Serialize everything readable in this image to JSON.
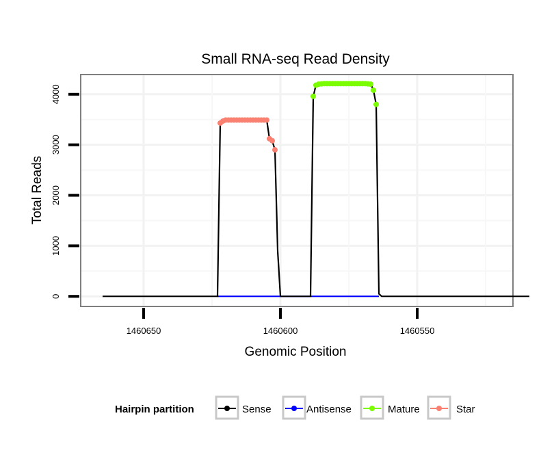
{
  "chart_data": {
    "type": "line",
    "title": "Small RNA-seq Read Density",
    "xlabel": "Genomic Position",
    "ylabel": "Total Reads",
    "xlim": [
      1460673,
      1460515
    ],
    "ylim": [
      -200,
      4390
    ],
    "x_ticks": [
      1460650,
      1460600,
      1460550
    ],
    "x_tick_labels": [
      "1460650",
      "1460600",
      "1460550"
    ],
    "y_ticks": [
      0,
      1000,
      2000,
      3000,
      4000
    ],
    "y_tick_labels": [
      "0",
      "1000",
      "2000",
      "3000",
      "4000"
    ],
    "grid": true,
    "legend": {
      "title": "Hairpin partition",
      "position": "bottom",
      "entries": [
        {
          "name": "Sense",
          "color": "#000000"
        },
        {
          "name": "Antisense",
          "color": "#0000ff"
        },
        {
          "name": "Mature",
          "color": "#7cfc00"
        },
        {
          "name": "Star",
          "color": "#fa8072"
        }
      ]
    },
    "series": [
      {
        "name": "Sense",
        "color": "#000000",
        "x": [
          1460665,
          1460623,
          1460622,
          1460621,
          1460605,
          1460604,
          1460603,
          1460602,
          1460601,
          1460600,
          1460599,
          1460590,
          1460589,
          1460588,
          1460587,
          1460586,
          1460585,
          1460567,
          1460566,
          1460565,
          1460564,
          1460563,
          1460509
        ],
        "y": [
          0,
          0,
          3430,
          3490,
          3490,
          3120,
          3080,
          2900,
          900,
          0,
          0,
          0,
          0,
          3950,
          4190,
          4210,
          4210,
          4210,
          4080,
          3800,
          50,
          0,
          0
        ]
      },
      {
        "name": "Antisense",
        "color": "#0000ff",
        "x": [
          1460623,
          1460564
        ],
        "y": [
          0,
          0
        ]
      },
      {
        "name": "Mature",
        "color": "#7cfc00",
        "x": [
          1460588,
          1460587,
          1460586,
          1460585,
          1460584,
          1460583,
          1460582,
          1460581,
          1460580,
          1460579,
          1460578,
          1460577,
          1460576,
          1460575,
          1460574,
          1460573,
          1460572,
          1460571,
          1460570,
          1460569,
          1460568,
          1460567,
          1460566,
          1460565
        ],
        "y": [
          3960,
          4180,
          4200,
          4205,
          4210,
          4210,
          4210,
          4210,
          4210,
          4210,
          4210,
          4210,
          4210,
          4210,
          4210,
          4210,
          4210,
          4210,
          4210,
          4210,
          4205,
          4200,
          4080,
          3800
        ]
      },
      {
        "name": "Star",
        "color": "#fa8072",
        "x": [
          1460622,
          1460621,
          1460620,
          1460619,
          1460618,
          1460617,
          1460616,
          1460615,
          1460614,
          1460613,
          1460612,
          1460611,
          1460610,
          1460609,
          1460608,
          1460607,
          1460606,
          1460605,
          1460604,
          1460603,
          1460602
        ],
        "y": [
          3430,
          3470,
          3490,
          3490,
          3490,
          3490,
          3490,
          3490,
          3490,
          3490,
          3490,
          3490,
          3490,
          3490,
          3490,
          3490,
          3490,
          3490,
          3120,
          3080,
          2900
        ]
      }
    ]
  }
}
